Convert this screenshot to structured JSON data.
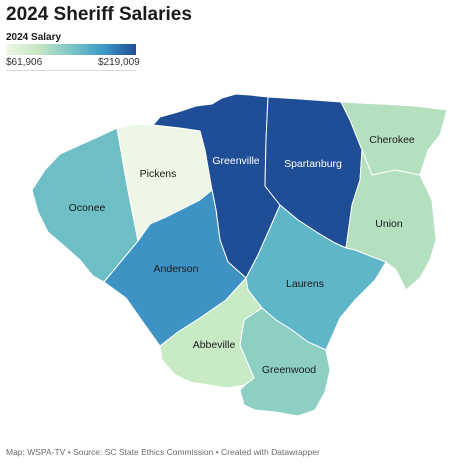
{
  "title": "2024 Sheriff Salaries",
  "legend": {
    "title": "2024 Salary",
    "min": "$61,906",
    "max": "$219,009"
  },
  "counties": {
    "pickens": {
      "name": "Pickens",
      "color": "#eef7e6"
    },
    "greenville": {
      "name": "Greenville",
      "color": "#1f4e96"
    },
    "spartanburg": {
      "name": "Spartanburg",
      "color": "#1f4e96"
    },
    "cherokee": {
      "name": "Cherokee",
      "color": "#b5e0c0"
    },
    "oconee": {
      "name": "Oconee",
      "color": "#6ebec6"
    },
    "union": {
      "name": "Union",
      "color": "#b5e0c0"
    },
    "anderson": {
      "name": "Anderson",
      "color": "#3f93c4"
    },
    "laurens": {
      "name": "Laurens",
      "color": "#5fb6c8"
    },
    "abbeville": {
      "name": "Abbeville",
      "color": "#c8ebc6"
    },
    "greenwood": {
      "name": "Greenwood",
      "color": "#8dd0c3"
    }
  },
  "footer": "Map: WSPA-TV • Source: SC State Ethics Commission • Created with Datawrapper"
}
